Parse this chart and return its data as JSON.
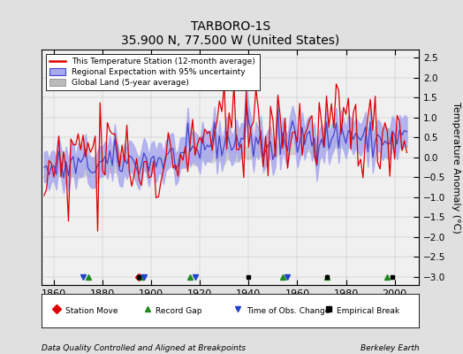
{
  "title": "TARBORO-1S",
  "subtitle": "35.900 N, 77.500 W (United States)",
  "ylabel": "Temperature Anomaly (°C)",
  "xlabel_left": "Data Quality Controlled and Aligned at Breakpoints",
  "xlabel_right": "Berkeley Earth",
  "ylim": [
    -3.2,
    2.7
  ],
  "xlim": [
    1855,
    2010
  ],
  "xticks": [
    1860,
    1880,
    1900,
    1920,
    1940,
    1960,
    1980,
    2000
  ],
  "yticks": [
    -3,
    -2.5,
    -2,
    -1.5,
    -1,
    -0.5,
    0,
    0.5,
    1,
    1.5,
    2,
    2.5
  ],
  "station_color": "#dd0000",
  "regional_color": "#4444cc",
  "regional_fill": "#aaaaee",
  "global_color": "#bbbbbb",
  "global_fill": "#cccccc",
  "background": "#f0f0f0",
  "legend_entries": [
    "This Temperature Station (12-month average)",
    "Regional Expectation with 95% uncertainty",
    "Global Land (5-year average)"
  ],
  "record_gaps": [
    1874,
    1896,
    1916,
    1954,
    1972,
    1997
  ],
  "obs_changes": [
    1872,
    1897,
    1918,
    1956
  ],
  "empirical_breaks": [
    1895,
    1940,
    1972,
    1999
  ],
  "station_moves": [
    1895
  ]
}
